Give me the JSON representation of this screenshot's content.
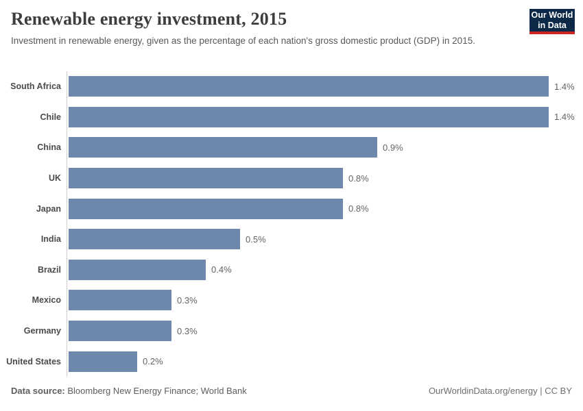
{
  "header": {
    "title": "Renewable energy investment, 2015",
    "subtitle": "Investment in renewable energy, given as the percentage of each nation's gross domestic product (GDP) in 2015.",
    "logo": {
      "line1": "Our World",
      "line2": "in Data",
      "bg_color": "#0d2948",
      "accent_color": "#cb2823"
    }
  },
  "chart_data": {
    "type": "bar",
    "orientation": "horizontal",
    "title": "Renewable energy investment, 2015",
    "categories": [
      "South Africa",
      "Chile",
      "China",
      "UK",
      "Japan",
      "India",
      "Brazil",
      "Mexico",
      "Germany",
      "United States"
    ],
    "values": [
      1.4,
      1.4,
      0.9,
      0.8,
      0.8,
      0.5,
      0.4,
      0.3,
      0.3,
      0.2
    ],
    "value_labels": [
      "1.4%",
      "1.4%",
      "0.9%",
      "0.8%",
      "0.8%",
      "0.5%",
      "0.4%",
      "0.3%",
      "0.3%",
      "0.2%"
    ],
    "unit": "% of GDP",
    "xlim": [
      0,
      1.5
    ],
    "grid": false,
    "legend": "none",
    "bar_color": "#6d87ad",
    "axis_color": "#cccccc"
  },
  "footer": {
    "source_label": "Data source:",
    "source_text": " Bloomberg New Energy Finance; World Bank",
    "credit": "OurWorldinData.org/energy | CC BY"
  }
}
